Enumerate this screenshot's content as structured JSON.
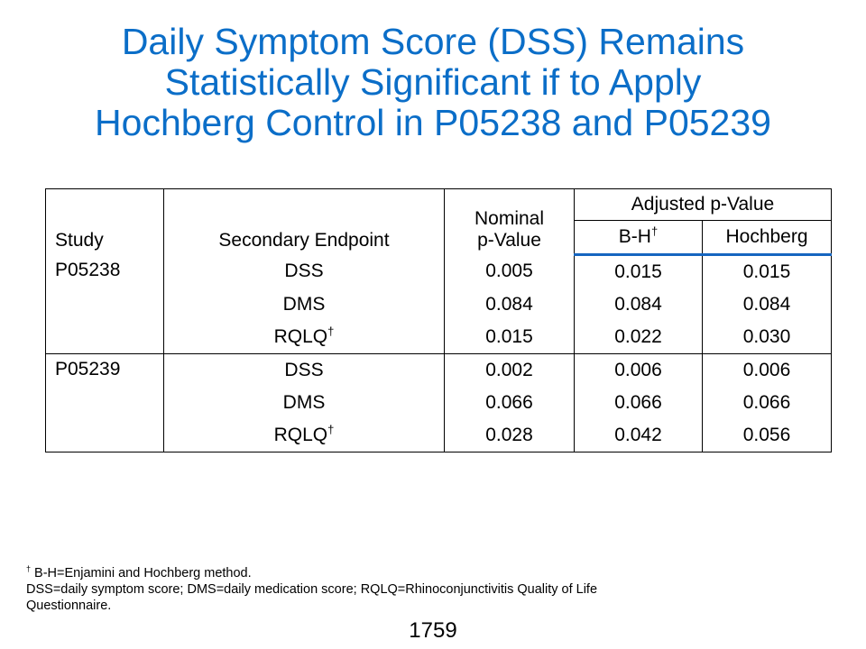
{
  "title": {
    "line1": "Daily Symptom Score (DSS) Remains",
    "line2": "Statistically Significant if to Apply",
    "line3": "Hochberg Control in P05238 and P05239"
  },
  "table": {
    "headers": {
      "study": "Study",
      "endpoint": "Secondary Endpoint",
      "nominal_line1": "Nominal",
      "nominal_line2": "p-Value",
      "adjusted": "Adjusted p-Value",
      "bh": "B-H",
      "bh_mark": "†",
      "hochberg": "Hochberg"
    },
    "groups": [
      {
        "study": "P05238",
        "rows": [
          {
            "endpoint": "DSS",
            "mark": "",
            "nominal": "0.005",
            "bh": "0.015",
            "hochberg": "0.015"
          },
          {
            "endpoint": "DMS",
            "mark": "",
            "nominal": "0.084",
            "bh": "0.084",
            "hochberg": "0.084"
          },
          {
            "endpoint": "RQLQ",
            "mark": "†",
            "nominal": "0.015",
            "bh": "0.022",
            "hochberg": "0.030"
          }
        ]
      },
      {
        "study": "P05239",
        "rows": [
          {
            "endpoint": "DSS",
            "mark": "",
            "nominal": "0.002",
            "bh": "0.006",
            "hochberg": "0.006"
          },
          {
            "endpoint": "DMS",
            "mark": "",
            "nominal": "0.066",
            "bh": "0.066",
            "hochberg": "0.066"
          },
          {
            "endpoint": "RQLQ",
            "mark": "†",
            "nominal": "0.028",
            "bh": "0.042",
            "hochberg": "0.056"
          }
        ]
      }
    ]
  },
  "footnote": {
    "mark": "†",
    "line1": " B-H=Enjamini and Hochberg method.",
    "line2": "DSS=daily symptom score; DMS=daily medication score; RQLQ=Rhinoconjunctivitis Quality of Life",
    "line3": "Questionnaire."
  },
  "page_number": "1759",
  "colors": {
    "title": "#0b6ec8",
    "header_rule": "#1565c0"
  }
}
